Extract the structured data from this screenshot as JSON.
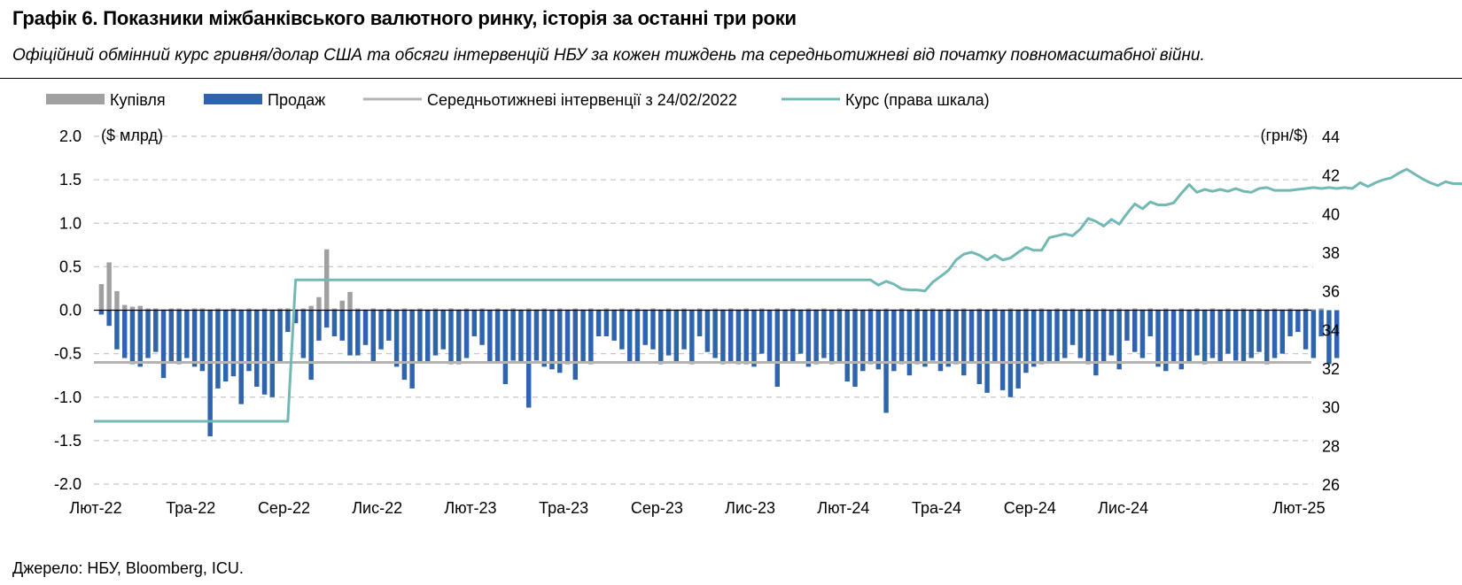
{
  "header": {
    "title": "Графік 6. Показники міжбанківського валютного ринку, історія за останні три роки",
    "subtitle": "Офіційний обмінний курс гривня/долар США та обсяги інтервенцій НБУ за кожен тиждень та середньотижневі від початку повномасштабної війни."
  },
  "footer": {
    "source": "Джерело: НБУ, Bloomberg, ICU."
  },
  "chart_data": {
    "type": "bar",
    "legend": {
      "placement": "top",
      "items": [
        {
          "label": "Купівля",
          "color": "#a0a0a0",
          "kind": "bar"
        },
        {
          "label": "Продаж",
          "color": "#2e63ad",
          "kind": "bar"
        },
        {
          "label": "Середньотижневі  інтервенції  з 24/02/2022",
          "color": "#b3b3b3",
          "kind": "line"
        },
        {
          "label": "Курс (права шкала)",
          "color": "#72b8b4",
          "kind": "line"
        }
      ]
    },
    "y_left": {
      "unit_label": "($ млрд)",
      "ylim": [
        -2.0,
        2.0
      ],
      "ticks": [
        "2.0",
        "1.5",
        "1.0",
        "0.5",
        "0.0",
        "-0.5",
        "-1.0",
        "-1.5",
        "-2.0"
      ],
      "tick_values": [
        2.0,
        1.5,
        1.0,
        0.5,
        0.0,
        -0.5,
        -1.0,
        -1.5,
        -2.0
      ]
    },
    "y_right": {
      "unit_label": "(грн/$)",
      "ylim": [
        26,
        44
      ],
      "ticks": [
        "44",
        "42",
        "40",
        "38",
        "36",
        "34",
        "32",
        "30",
        "28",
        "26"
      ],
      "tick_values": [
        44,
        42,
        40,
        38,
        36,
        34,
        32,
        30,
        28,
        26
      ]
    },
    "x_ticks": [
      "Лют-22",
      "Тра-22",
      "Сер-22",
      "Лис-22",
      "Лют-23",
      "Тра-23",
      "Сер-23",
      "Лис-23",
      "Лют-24",
      "Тра-24",
      "Сер-24",
      "Лис-24",
      "Лют-25"
    ],
    "grid": {
      "horizontal": true,
      "style": "dashed"
    },
    "weeks": 156,
    "series": [
      {
        "name": "Купівля",
        "color": "#a0a0a0",
        "values": [
          0.3,
          0.55,
          0.22,
          0.06,
          0.04,
          0.05,
          0.02,
          0.02,
          0.01,
          0.02,
          0.02,
          0.01,
          0.02,
          0.02,
          0.01,
          0.02,
          0.01,
          0.02,
          0.01,
          0.02,
          0.01,
          0.02,
          0.01,
          0.02,
          0.02,
          0.01,
          0.02,
          0.05,
          0.15,
          0.7,
          0.02,
          0.11,
          0.21,
          0.02,
          0.01,
          0.02,
          0.01,
          0.02,
          0.01,
          0.02,
          0.01,
          0.02,
          0.01,
          0.02,
          0.01,
          0.02,
          0.01,
          0.02,
          0.01,
          0.02,
          0.01,
          0.02,
          0.01,
          0.02,
          0.01,
          0.02,
          0.01,
          0.02,
          0.01,
          0.02,
          0.01,
          0.02,
          0.01,
          0.02,
          0.01,
          0.02,
          0.01,
          0.02,
          0.01,
          0.02,
          0.01,
          0.02,
          0.01,
          0.02,
          0.01,
          0.02,
          0.01,
          0.02,
          0.01,
          0.02,
          0.01,
          0.02,
          0.01,
          0.02,
          0.01,
          0.02,
          0.01,
          0.02,
          0.01,
          0.02,
          0.01,
          0.02,
          0.01,
          0.02,
          0.01,
          0.02,
          0.01,
          0.02,
          0.01,
          0.02,
          0.01,
          0.02,
          0.01,
          0.02,
          0.01,
          0.02,
          0.01,
          0.02,
          0.01,
          0.02,
          0.01,
          0.02,
          0.01,
          0.02,
          0.01,
          0.02,
          0.01,
          0.02,
          0.01,
          0.02,
          0.01,
          0.02,
          0.01,
          0.02,
          0.01,
          0.02,
          0.01,
          0.02,
          0.01,
          0.02,
          0.01,
          0.02,
          0.01,
          0.02,
          0.01,
          0.02,
          0.01,
          0.02,
          0.01,
          0.02,
          0.01,
          0.02,
          0.01,
          0.02,
          0.01,
          0.02,
          0.01,
          0.02,
          0.01,
          0.02,
          0.01,
          0.02,
          0.01,
          0.02,
          0.01,
          0.02,
          0.01,
          0.02
        ]
      },
      {
        "name": "Продаж",
        "color": "#2e63ad",
        "values": [
          -0.05,
          -0.18,
          -0.45,
          -0.55,
          -0.62,
          -0.65,
          -0.55,
          -0.48,
          -0.78,
          -0.6,
          -0.62,
          -0.55,
          -0.65,
          -0.7,
          -1.45,
          -0.9,
          -0.82,
          -0.76,
          -1.08,
          -0.7,
          -0.88,
          -0.97,
          -1.0,
          -0.6,
          -0.25,
          -0.15,
          -0.55,
          -0.8,
          -0.35,
          -0.2,
          -0.3,
          -0.35,
          -0.52,
          -0.52,
          -0.4,
          -0.6,
          -0.45,
          -0.35,
          -0.65,
          -0.8,
          -0.9,
          -0.6,
          -0.6,
          -0.52,
          -0.45,
          -0.62,
          -0.62,
          -0.55,
          -0.3,
          -0.4,
          -0.6,
          -0.6,
          -0.85,
          -0.58,
          -0.6,
          -1.12,
          -0.58,
          -0.65,
          -0.68,
          -0.72,
          -0.62,
          -0.8,
          -0.6,
          -0.62,
          -0.3,
          -0.3,
          -0.35,
          -0.45,
          -0.6,
          -0.6,
          -0.4,
          -0.45,
          -0.62,
          -0.52,
          -0.6,
          -0.45,
          -0.62,
          -0.3,
          -0.48,
          -0.55,
          -0.62,
          -0.6,
          -0.62,
          -0.62,
          -0.65,
          -0.5,
          -0.6,
          -0.88,
          -0.6,
          -0.6,
          -0.5,
          -0.65,
          -0.62,
          -0.55,
          -0.62,
          -0.6,
          -0.82,
          -0.88,
          -0.7,
          -0.62,
          -0.68,
          -1.18,
          -0.7,
          -0.62,
          -0.75,
          -0.62,
          -0.65,
          -0.58,
          -0.7,
          -0.65,
          -0.62,
          -0.75,
          -0.6,
          -0.85,
          -0.95,
          -0.6,
          -0.92,
          -1.0,
          -0.9,
          -0.72,
          -0.65,
          -0.62,
          -0.6,
          -0.6,
          -0.55,
          -0.4,
          -0.55,
          -0.62,
          -0.75,
          -0.6,
          -0.52,
          -0.68,
          -0.35,
          -0.48,
          -0.55,
          -0.3,
          -0.65,
          -0.7,
          -0.6,
          -0.68,
          -0.6,
          -0.52,
          -0.62,
          -0.55,
          -0.6,
          -0.5,
          -0.58,
          -0.6,
          -0.55,
          -0.48,
          -0.62,
          -0.55,
          -0.5,
          -0.3,
          -0.25,
          -0.45,
          -0.55,
          -0.3,
          -0.62,
          -0.55
        ]
      },
      {
        "name": "Середньотижневі  інтервенції  з 24/02/2022",
        "color": "#b3b3b3",
        "type": "line",
        "value": -0.6
      },
      {
        "name": "Курс (права шкала)",
        "color": "#72b8b4",
        "type": "line",
        "axis": "right",
        "values": [
          29.25,
          29.25,
          29.25,
          29.25,
          29.25,
          29.25,
          29.25,
          29.25,
          29.25,
          29.25,
          29.25,
          29.25,
          29.25,
          29.25,
          29.25,
          29.25,
          29.25,
          29.25,
          29.25,
          29.25,
          29.25,
          29.25,
          29.25,
          29.25,
          29.25,
          36.57,
          36.57,
          36.57,
          36.57,
          36.57,
          36.57,
          36.57,
          36.57,
          36.57,
          36.57,
          36.57,
          36.57,
          36.57,
          36.57,
          36.57,
          36.57,
          36.57,
          36.57,
          36.57,
          36.57,
          36.57,
          36.57,
          36.57,
          36.57,
          36.57,
          36.57,
          36.57,
          36.57,
          36.57,
          36.57,
          36.57,
          36.57,
          36.57,
          36.57,
          36.57,
          36.57,
          36.57,
          36.57,
          36.57,
          36.57,
          36.57,
          36.57,
          36.57,
          36.57,
          36.57,
          36.57,
          36.57,
          36.57,
          36.57,
          36.57,
          36.57,
          36.57,
          36.57,
          36.57,
          36.57,
          36.57,
          36.57,
          36.57,
          36.57,
          36.57,
          36.57,
          36.57,
          36.57,
          36.57,
          36.57,
          36.57,
          36.57,
          36.57,
          36.57,
          36.57,
          36.57,
          36.57,
          36.57,
          36.57,
          36.57,
          36.3,
          36.5,
          36.35,
          36.1,
          36.05,
          36.05,
          36.0,
          36.45,
          36.75,
          37.05,
          37.6,
          37.9,
          38.0,
          37.85,
          37.6,
          37.85,
          37.6,
          37.7,
          38.0,
          38.25,
          38.1,
          38.1,
          38.75,
          38.85,
          38.95,
          38.85,
          39.2,
          39.75,
          39.6,
          39.35,
          39.7,
          39.45,
          40.0,
          40.5,
          40.25,
          40.6,
          40.45,
          40.45,
          40.55,
          41.05,
          41.5,
          41.1,
          41.25,
          41.15,
          41.25,
          41.15,
          41.3,
          41.15,
          41.1,
          41.3,
          41.35,
          41.2,
          41.2,
          41.2,
          41.25,
          41.3,
          41.35,
          41.3,
          41.35,
          41.3,
          41.35,
          41.3,
          41.6,
          41.4,
          41.6,
          41.75,
          41.85,
          42.1,
          42.3,
          42.05,
          41.8,
          41.6,
          41.45,
          41.65,
          41.55,
          41.55,
          41.4,
          41.25
        ]
      }
    ]
  }
}
